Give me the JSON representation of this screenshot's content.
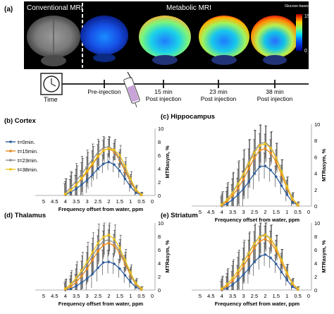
{
  "figure": {
    "panel_a": {
      "label": "(a)",
      "conventional_title": "Conventional MRI",
      "metabolic_title": "Metabolic MRI",
      "colorbar": {
        "title": "Glucose-based signal (%)",
        "max_label": "15",
        "min_label": "0"
      },
      "timeline": {
        "time_label": "Time",
        "points": [
          "Pre-injection",
          "15 min Post injection",
          "23 min Post injection",
          "38 min Post injection"
        ]
      },
      "icons": [
        "clock-icon",
        "syringe-icon"
      ]
    },
    "colors": {
      "t0": "#2f5e9e",
      "t15": "#e6891e",
      "t23": "#8c8c8c",
      "t38": "#f0c419",
      "background": "#000000",
      "panel_bg": "#ffffff"
    }
  },
  "chart_data": [
    {
      "type": "line",
      "title": "(b) Cortex",
      "xlabel": "Frequency offset from water, ppm",
      "ylabel": "MTRasym, %",
      "x": [
        4,
        3.75,
        3.5,
        3.25,
        3,
        2.75,
        2.5,
        2.25,
        2,
        1.75,
        1.5,
        1.25,
        1,
        0.75,
        0.5
      ],
      "xlim": [
        5,
        0
      ],
      "xreverse": true,
      "ylim": [
        0,
        10
      ],
      "xticks": [
        "5",
        "4.5",
        "4",
        "3.5",
        "3",
        "2.5",
        "2",
        "1.5",
        "1",
        "0.5",
        "0"
      ],
      "yticks": [
        "0",
        "2",
        "4",
        "6",
        "8",
        "10"
      ],
      "legend": "left",
      "series": [
        {
          "name": "t=0min.",
          "values": [
            0.1,
            0.5,
            1.0,
            1.6,
            2.3,
            3.1,
            4.0,
            4.7,
            5.0,
            4.6,
            3.7,
            2.5,
            1.3,
            0.4,
            0.1
          ]
        },
        {
          "name": "t=15min.",
          "values": [
            0.2,
            0.8,
            1.6,
            2.5,
            3.5,
            4.6,
            5.8,
            6.7,
            7.0,
            6.5,
            5.3,
            3.6,
            2.0,
            0.7,
            0.1
          ]
        },
        {
          "name": "t=23min.",
          "values": [
            0.4,
            1.2,
            2.2,
            3.2,
            4.3,
            5.4,
            6.4,
            7.1,
            7.3,
            6.7,
            5.5,
            3.9,
            2.2,
            0.8,
            0.2
          ]
        },
        {
          "name": "t=38min.",
          "values": [
            0.2,
            0.8,
            1.6,
            2.6,
            3.7,
            4.8,
            5.9,
            6.7,
            7.0,
            6.8,
            6.0,
            4.4,
            2.5,
            0.9,
            0.1
          ]
        }
      ],
      "error": [
        2.2,
        2.5,
        2.7,
        2.8,
        2.6,
        2.4,
        2.1,
        1.8,
        1.6,
        1.5,
        1.4,
        1.2,
        1.0,
        0.6,
        0.3
      ]
    },
    {
      "type": "line",
      "title": "(c) Hippocampus",
      "xlabel": "Frequency offset from water, ppm",
      "ylabel": "MTRasym, %",
      "x": [
        4,
        3.75,
        3.5,
        3.25,
        3,
        2.75,
        2.5,
        2.25,
        2,
        1.75,
        1.5,
        1.25,
        1,
        0.75,
        0.5
      ],
      "xlim": [
        5,
        0
      ],
      "xreverse": true,
      "ylim": [
        0,
        10
      ],
      "xticks": [
        "5",
        "4.5",
        "4",
        "3.5",
        "3",
        "2.5",
        "2",
        "1.5",
        "1",
        "0.5",
        "0"
      ],
      "yticks": [
        "0",
        "2",
        "4",
        "6",
        "8",
        "10"
      ],
      "series": [
        {
          "name": "t=0min.",
          "values": [
            0.0,
            0.3,
            0.8,
            1.4,
            2.1,
            3.0,
            4.0,
            4.8,
            4.9,
            4.4,
            3.6,
            2.5,
            1.4,
            0.5,
            0.1
          ]
        },
        {
          "name": "t=15min.",
          "values": [
            0.1,
            0.6,
            1.3,
            2.2,
            3.3,
            4.6,
            5.9,
            6.8,
            7.0,
            6.5,
            5.4,
            3.8,
            2.2,
            0.8,
            0.1
          ]
        },
        {
          "name": "t=23min.",
          "values": [
            0.2,
            0.8,
            1.7,
            2.8,
            4.0,
            5.4,
            6.8,
            7.6,
            7.8,
            7.2,
            6.0,
            4.3,
            2.5,
            0.9,
            0.2
          ]
        },
        {
          "name": "t=38min.",
          "values": [
            0.2,
            0.8,
            1.6,
            2.7,
            3.9,
            5.2,
            6.5,
            7.4,
            7.6,
            7.1,
            5.9,
            4.2,
            2.4,
            0.9,
            0.2
          ]
        }
      ],
      "error": [
        1.5,
        2.0,
        2.4,
        2.7,
        2.9,
        2.8,
        2.6,
        2.4,
        2.1,
        1.9,
        1.7,
        1.4,
        1.1,
        0.7,
        0.3
      ]
    },
    {
      "type": "line",
      "title": "(d) Thalamus",
      "xlabel": "Frequency offset from water, ppm",
      "ylabel": "MTRasym, %",
      "x": [
        4,
        3.75,
        3.5,
        3.25,
        3,
        2.75,
        2.5,
        2.25,
        2,
        1.75,
        1.5,
        1.25,
        1,
        0.75,
        0.5
      ],
      "xlim": [
        5,
        0
      ],
      "xreverse": true,
      "ylim": [
        0,
        10
      ],
      "xticks": [
        "5",
        "4.5",
        "4",
        "3.5",
        "3",
        "2.5",
        "2",
        "1.5",
        "1",
        "0.5",
        "0"
      ],
      "yticks": [
        "0",
        "2",
        "4",
        "6",
        "8",
        "10"
      ],
      "series": [
        {
          "name": "t=0min.",
          "values": [
            0.0,
            0.2,
            0.6,
            1.1,
            1.7,
            2.4,
            3.3,
            4.1,
            4.2,
            3.9,
            3.2,
            2.2,
            1.2,
            0.4,
            0.1
          ]
        },
        {
          "name": "t=15min.",
          "values": [
            0.1,
            0.5,
            1.2,
            2.1,
            3.2,
            4.5,
            5.8,
            6.7,
            7.0,
            6.6,
            5.5,
            3.9,
            2.2,
            0.8,
            0.1
          ]
        },
        {
          "name": "t=23min.",
          "values": [
            0.2,
            0.8,
            1.6,
            2.6,
            3.8,
            5.1,
            6.4,
            7.3,
            7.5,
            7.0,
            5.8,
            4.2,
            2.4,
            0.9,
            0.2
          ]
        },
        {
          "name": "t=38min.",
          "values": [
            0.2,
            0.9,
            1.8,
            2.9,
            4.2,
            5.6,
            7.0,
            7.9,
            8.2,
            7.6,
            6.3,
            4.5,
            2.6,
            1.0,
            0.2
          ]
        }
      ],
      "error": [
        1.4,
        1.9,
        2.3,
        2.6,
        2.8,
        2.8,
        2.7,
        2.5,
        2.3,
        2.0,
        1.8,
        1.5,
        1.1,
        0.7,
        0.3
      ]
    },
    {
      "type": "line",
      "title": "(e) Striatum",
      "xlabel": "Frequency offset from water, ppm",
      "ylabel": "MTRasym, %",
      "x": [
        4,
        3.75,
        3.5,
        3.25,
        3,
        2.75,
        2.5,
        2.25,
        2,
        1.75,
        1.5,
        1.25,
        1,
        0.75,
        0.5
      ],
      "xlim": [
        5,
        0
      ],
      "xreverse": true,
      "ylim": [
        0,
        10
      ],
      "xticks": [
        "5",
        "4.5",
        "4",
        "3.5",
        "3",
        "2.5",
        "2",
        "1.5",
        "1",
        "0.5",
        "0"
      ],
      "yticks": [
        "0",
        "2",
        "4",
        "6",
        "8",
        "10"
      ],
      "series": [
        {
          "name": "t=0min.",
          "values": [
            0.0,
            0.3,
            0.8,
            1.5,
            2.3,
            3.2,
            4.2,
            5.0,
            5.3,
            4.8,
            3.9,
            2.7,
            1.5,
            0.5,
            0.1
          ]
        },
        {
          "name": "t=15min.",
          "values": [
            0.1,
            0.6,
            1.4,
            2.4,
            3.6,
            4.9,
            6.3,
            7.3,
            7.6,
            7.1,
            5.9,
            4.2,
            2.4,
            0.9,
            0.1
          ]
        },
        {
          "name": "t=23min.",
          "values": [
            0.2,
            0.9,
            1.8,
            2.9,
            4.2,
            5.6,
            7.0,
            8.0,
            8.3,
            7.7,
            6.4,
            4.6,
            2.6,
            1.0,
            0.2
          ]
        },
        {
          "name": "t=38min.",
          "values": [
            0.2,
            0.9,
            1.8,
            2.9,
            4.2,
            5.5,
            6.9,
            7.9,
            8.2,
            7.6,
            6.3,
            4.5,
            2.6,
            1.0,
            0.2
          ]
        }
      ],
      "error": [
        1.8,
        2.2,
        2.6,
        2.9,
        3.1,
        3.0,
        2.8,
        2.6,
        2.3,
        2.0,
        1.8,
        1.5,
        1.2,
        0.7,
        0.3
      ]
    }
  ]
}
